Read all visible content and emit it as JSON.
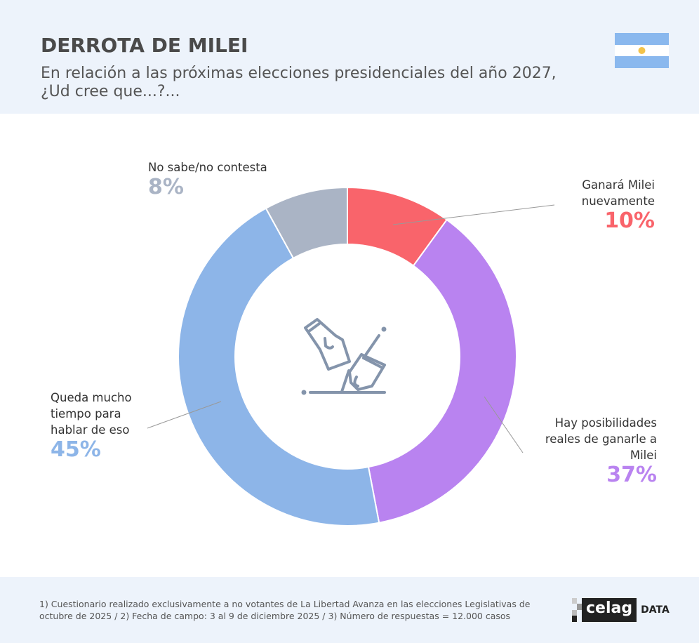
{
  "header": {
    "title": "DERROTA DE MILEI",
    "subtitle": "En relación a las próximas elecciones presidenciales del año 2027, ¿Ud cree que...?..."
  },
  "chart_data": {
    "type": "pie",
    "variant": "donut",
    "categories": [
      "Ganará Milei nuevamente",
      "Hay posibilidades reales de ganarle a Milei",
      "Queda mucho tiempo para hablar de eso",
      "No sabe/no contesta"
    ],
    "values": [
      10,
      37,
      45,
      8
    ],
    "labels": [
      "10%",
      "37%",
      "45%",
      "8%"
    ],
    "colors": [
      "#f9646b",
      "#b983f0",
      "#8db5e8",
      "#aab4c5"
    ],
    "center_icon": "ballot-box-voting-icon"
  },
  "footer": {
    "note": "1) Cuestionario realizado exclusivamente a no votantes de La Libertad Avanza en las elecciones Legislativas de octubre de 2025  /  2) Fecha de campo: 3 al 9 de diciembre 2025 /  3) Número de respuestas = 12.000 casos",
    "logo_text": "celag",
    "logo_suffix": "DATA"
  }
}
